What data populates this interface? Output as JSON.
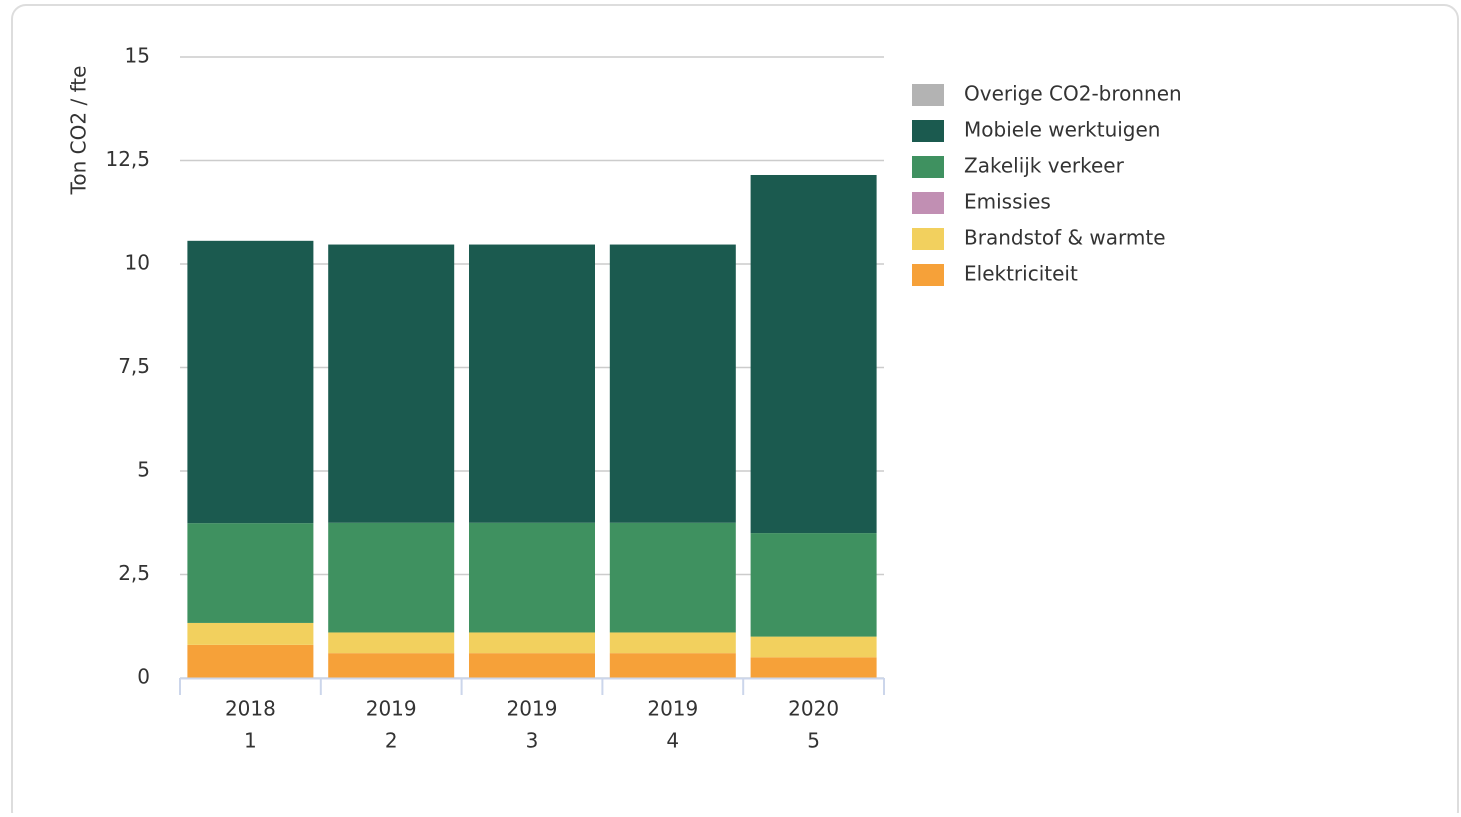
{
  "chart_data": {
    "type": "stacked_bar",
    "y_label": "Ton CO2 / fte",
    "categories": [
      [
        "2018",
        "1"
      ],
      [
        "2019",
        "2"
      ],
      [
        "2019",
        "3"
      ],
      [
        "2019",
        "4"
      ],
      [
        "2020",
        "5"
      ]
    ],
    "series": [
      {
        "name": "Elektriciteit",
        "color": "#f6a139",
        "values": [
          0.8,
          0.6,
          0.6,
          0.6,
          0.5
        ]
      },
      {
        "name": "Brandstof & warmte",
        "color": "#f2d05e",
        "values": [
          0.53,
          0.5,
          0.5,
          0.5,
          0.5
        ]
      },
      {
        "name": "Emissies",
        "color": "#c18fb3",
        "values": [
          0,
          0,
          0,
          0,
          0
        ]
      },
      {
        "name": "Zakelijk verkeer",
        "color": "#3f9160",
        "values": [
          2.41,
          2.65,
          2.65,
          2.65,
          2.5
        ]
      },
      {
        "name": "Mobiele werktuigen",
        "color": "#1b5a4f",
        "values": [
          6.82,
          6.72,
          6.72,
          6.72,
          8.65
        ]
      },
      {
        "name": "Overige CO2-bronnen",
        "color": "#b3b3b3",
        "values": [
          0,
          0,
          0,
          0,
          0
        ]
      }
    ],
    "ylim": [
      0,
      15
    ],
    "yticks": [
      0,
      {
        "value": 2.5,
        "label": "2,5"
      },
      5,
      {
        "value": 7.5,
        "label": "7,5"
      },
      10,
      {
        "value": 12.5,
        "label": "12,5"
      },
      15
    ],
    "grid": true,
    "legend": "right"
  }
}
